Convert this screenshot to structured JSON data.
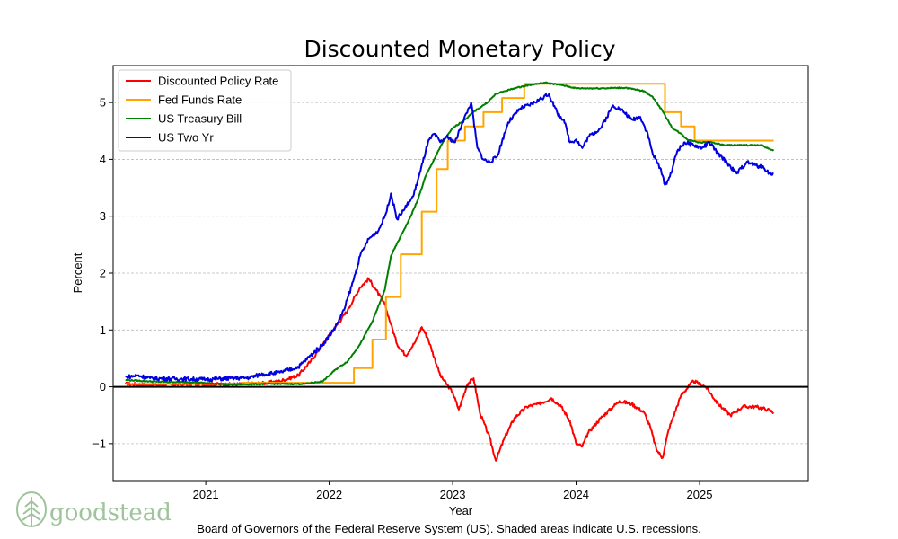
{
  "chart_data": {
    "type": "line",
    "title": "Discounted Monetary Policy",
    "xlabel": "Year",
    "ylabel": "Percent",
    "xlim": [
      2020.25,
      2025.88
    ],
    "ylim": [
      -1.65,
      5.65
    ],
    "x_ticks": [
      2021,
      2022,
      2023,
      2024,
      2025
    ],
    "x_tick_labels": [
      "2021",
      "2022",
      "2023",
      "2024",
      "2025"
    ],
    "y_ticks": [
      -1,
      0,
      1,
      2,
      3,
      4,
      5
    ],
    "y_tick_labels": [
      "−1",
      "0",
      "1",
      "2",
      "3",
      "4",
      "5"
    ],
    "grid": "horizontal-dashed",
    "legend_position": "top-left",
    "zero_line": 0,
    "series": [
      {
        "name": "Discounted Policy Rate",
        "color": "#ff0000",
        "step": false,
        "points": [
          [
            2020.35,
            0.05
          ],
          [
            2020.6,
            0.03
          ],
          [
            2020.9,
            0.05
          ],
          [
            2021.2,
            0.04
          ],
          [
            2021.45,
            0.06
          ],
          [
            2021.6,
            0.1
          ],
          [
            2021.75,
            0.2
          ],
          [
            2021.85,
            0.45
          ],
          [
            2021.95,
            0.75
          ],
          [
            2022.05,
            1.05
          ],
          [
            2022.15,
            1.35
          ],
          [
            2022.25,
            1.75
          ],
          [
            2022.32,
            1.9
          ],
          [
            2022.38,
            1.7
          ],
          [
            2022.45,
            1.45
          ],
          [
            2022.5,
            1.1
          ],
          [
            2022.55,
            0.75
          ],
          [
            2022.62,
            0.55
          ],
          [
            2022.7,
            0.8
          ],
          [
            2022.75,
            1.05
          ],
          [
            2022.8,
            0.85
          ],
          [
            2022.9,
            0.2
          ],
          [
            2023.0,
            -0.1
          ],
          [
            2023.05,
            -0.4
          ],
          [
            2023.12,
            0.05
          ],
          [
            2023.17,
            0.15
          ],
          [
            2023.22,
            -0.45
          ],
          [
            2023.3,
            -0.9
          ],
          [
            2023.35,
            -1.3
          ],
          [
            2023.42,
            -0.9
          ],
          [
            2023.5,
            -0.55
          ],
          [
            2023.6,
            -0.35
          ],
          [
            2023.7,
            -0.3
          ],
          [
            2023.8,
            -0.2
          ],
          [
            2023.88,
            -0.35
          ],
          [
            2023.95,
            -0.6
          ],
          [
            2024.0,
            -1.0
          ],
          [
            2024.05,
            -1.05
          ],
          [
            2024.1,
            -0.8
          ],
          [
            2024.2,
            -0.55
          ],
          [
            2024.3,
            -0.35
          ],
          [
            2024.35,
            -0.25
          ],
          [
            2024.45,
            -0.3
          ],
          [
            2024.55,
            -0.45
          ],
          [
            2024.6,
            -0.7
          ],
          [
            2024.65,
            -1.1
          ],
          [
            2024.7,
            -1.25
          ],
          [
            2024.75,
            -0.75
          ],
          [
            2024.85,
            -0.15
          ],
          [
            2024.95,
            0.1
          ],
          [
            2025.05,
            0.0
          ],
          [
            2025.15,
            -0.3
          ],
          [
            2025.25,
            -0.5
          ],
          [
            2025.35,
            -0.35
          ],
          [
            2025.45,
            -0.35
          ],
          [
            2025.55,
            -0.4
          ],
          [
            2025.6,
            -0.45
          ]
        ]
      },
      {
        "name": "Fed Funds Rate",
        "color": "#ffa500",
        "step": true,
        "points": [
          [
            2020.35,
            0.05
          ],
          [
            2021.3,
            0.07
          ],
          [
            2022.2,
            0.33
          ],
          [
            2022.35,
            0.83
          ],
          [
            2022.46,
            1.58
          ],
          [
            2022.58,
            2.33
          ],
          [
            2022.75,
            3.08
          ],
          [
            2022.87,
            3.83
          ],
          [
            2022.96,
            4.33
          ],
          [
            2023.1,
            4.58
          ],
          [
            2023.25,
            4.83
          ],
          [
            2023.4,
            5.08
          ],
          [
            2023.58,
            5.33
          ],
          [
            2024.72,
            4.83
          ],
          [
            2024.85,
            4.58
          ],
          [
            2024.96,
            4.33
          ],
          [
            2025.6,
            4.33
          ]
        ]
      },
      {
        "name": "US Treasury Bill",
        "color": "#008000",
        "step": false,
        "points": [
          [
            2020.35,
            0.12
          ],
          [
            2020.6,
            0.09
          ],
          [
            2020.9,
            0.08
          ],
          [
            2021.2,
            0.04
          ],
          [
            2021.5,
            0.05
          ],
          [
            2021.8,
            0.05
          ],
          [
            2021.95,
            0.1
          ],
          [
            2022.05,
            0.3
          ],
          [
            2022.15,
            0.45
          ],
          [
            2022.25,
            0.75
          ],
          [
            2022.35,
            1.15
          ],
          [
            2022.45,
            1.7
          ],
          [
            2022.5,
            2.3
          ],
          [
            2022.58,
            2.65
          ],
          [
            2022.65,
            2.95
          ],
          [
            2022.72,
            3.3
          ],
          [
            2022.78,
            3.7
          ],
          [
            2022.85,
            4.0
          ],
          [
            2022.92,
            4.3
          ],
          [
            2023.0,
            4.55
          ],
          [
            2023.1,
            4.7
          ],
          [
            2023.18,
            4.85
          ],
          [
            2023.28,
            5.0
          ],
          [
            2023.35,
            5.15
          ],
          [
            2023.42,
            5.2
          ],
          [
            2023.5,
            5.25
          ],
          [
            2023.6,
            5.3
          ],
          [
            2023.75,
            5.35
          ],
          [
            2023.9,
            5.3
          ],
          [
            2024.0,
            5.25
          ],
          [
            2024.2,
            5.25
          ],
          [
            2024.4,
            5.26
          ],
          [
            2024.55,
            5.2
          ],
          [
            2024.62,
            5.1
          ],
          [
            2024.7,
            4.85
          ],
          [
            2024.78,
            4.55
          ],
          [
            2024.85,
            4.45
          ],
          [
            2024.9,
            4.35
          ],
          [
            2025.0,
            4.3
          ],
          [
            2025.1,
            4.3
          ],
          [
            2025.2,
            4.25
          ],
          [
            2025.35,
            4.25
          ],
          [
            2025.5,
            4.25
          ],
          [
            2025.6,
            4.15
          ]
        ]
      },
      {
        "name": "US Two Yr",
        "color": "#0000e0",
        "step": false,
        "points": [
          [
            2020.35,
            0.17
          ],
          [
            2020.45,
            0.2
          ],
          [
            2020.55,
            0.15
          ],
          [
            2020.8,
            0.14
          ],
          [
            2021.0,
            0.13
          ],
          [
            2021.2,
            0.15
          ],
          [
            2021.35,
            0.16
          ],
          [
            2021.45,
            0.22
          ],
          [
            2021.6,
            0.25
          ],
          [
            2021.75,
            0.35
          ],
          [
            2021.85,
            0.55
          ],
          [
            2021.95,
            0.75
          ],
          [
            2022.05,
            1.05
          ],
          [
            2022.12,
            1.35
          ],
          [
            2022.2,
            1.9
          ],
          [
            2022.25,
            2.3
          ],
          [
            2022.32,
            2.6
          ],
          [
            2022.4,
            2.75
          ],
          [
            2022.46,
            3.05
          ],
          [
            2022.5,
            3.4
          ],
          [
            2022.55,
            2.95
          ],
          [
            2022.6,
            3.1
          ],
          [
            2022.68,
            3.35
          ],
          [
            2022.74,
            3.8
          ],
          [
            2022.8,
            4.3
          ],
          [
            2022.85,
            4.45
          ],
          [
            2022.9,
            4.3
          ],
          [
            2022.95,
            4.4
          ],
          [
            2023.02,
            4.3
          ],
          [
            2023.08,
            4.65
          ],
          [
            2023.15,
            5.0
          ],
          [
            2023.2,
            4.2
          ],
          [
            2023.25,
            4.0
          ],
          [
            2023.3,
            3.95
          ],
          [
            2023.36,
            4.05
          ],
          [
            2023.45,
            4.65
          ],
          [
            2023.55,
            4.9
          ],
          [
            2023.62,
            4.95
          ],
          [
            2023.7,
            5.05
          ],
          [
            2023.78,
            5.15
          ],
          [
            2023.85,
            4.8
          ],
          [
            2023.9,
            4.7
          ],
          [
            2023.95,
            4.3
          ],
          [
            2024.0,
            4.35
          ],
          [
            2024.05,
            4.2
          ],
          [
            2024.1,
            4.4
          ],
          [
            2024.2,
            4.55
          ],
          [
            2024.3,
            4.95
          ],
          [
            2024.38,
            4.85
          ],
          [
            2024.45,
            4.7
          ],
          [
            2024.52,
            4.75
          ],
          [
            2024.58,
            4.45
          ],
          [
            2024.62,
            4.1
          ],
          [
            2024.68,
            3.85
          ],
          [
            2024.72,
            3.55
          ],
          [
            2024.76,
            3.7
          ],
          [
            2024.82,
            4.15
          ],
          [
            2024.88,
            4.3
          ],
          [
            2024.95,
            4.25
          ],
          [
            2025.02,
            4.2
          ],
          [
            2025.08,
            4.3
          ],
          [
            2025.15,
            4.1
          ],
          [
            2025.22,
            3.95
          ],
          [
            2025.3,
            3.75
          ],
          [
            2025.38,
            3.95
          ],
          [
            2025.45,
            3.9
          ],
          [
            2025.52,
            3.85
          ],
          [
            2025.57,
            3.75
          ],
          [
            2025.6,
            3.75
          ]
        ]
      }
    ]
  },
  "caption": "Board of Governors of the Federal Reserve System (US). Shaded areas indicate U.S. recessions.",
  "logo": {
    "text": "goodstead",
    "icon": "tree-icon",
    "color": "#9dc49a"
  }
}
